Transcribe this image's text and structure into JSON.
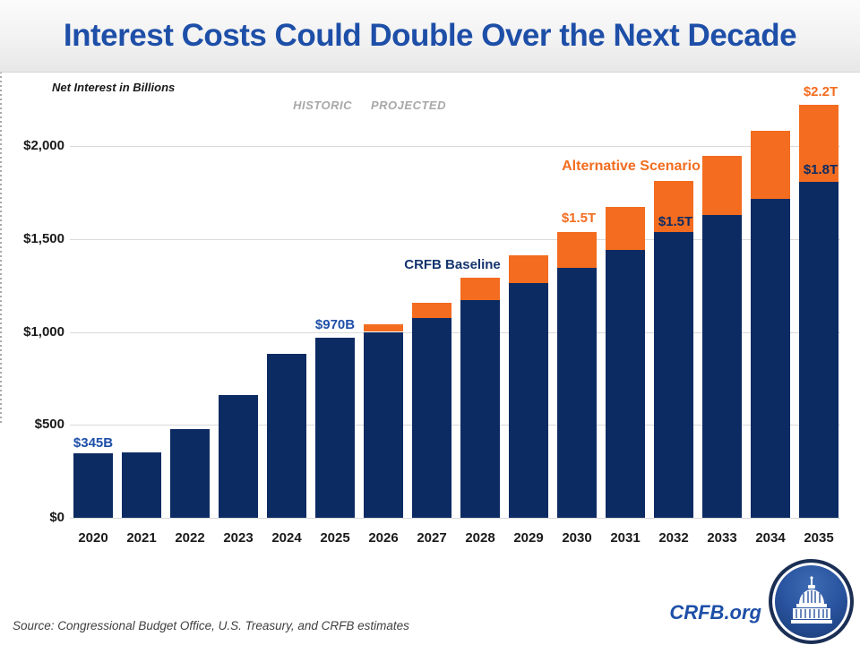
{
  "header": {
    "title": "Interest Costs Could Double Over the Next Decade"
  },
  "chart": {
    "note": "Net Interest in Billions",
    "historic_label": "HISTORIC",
    "projected_label": "PROJECTED"
  },
  "chart_data": {
    "type": "bar",
    "stacked": true,
    "title": "Interest Costs Could Double Over the Next Decade",
    "ylabel": "Net Interest in Billions",
    "units": "billions of dollars",
    "ylim": [
      0,
      2400
    ],
    "grid": true,
    "yticks": [
      {
        "label": "$0",
        "value": 0
      },
      {
        "label": "$500",
        "value": 500
      },
      {
        "label": "$1,000",
        "value": 1000
      },
      {
        "label": "$1,500",
        "value": 1500
      },
      {
        "label": "$2,000",
        "value": 2000
      }
    ],
    "categories": [
      "2020",
      "2021",
      "2022",
      "2023",
      "2024",
      "2025",
      "2026",
      "2027",
      "2028",
      "2029",
      "2030",
      "2031",
      "2032",
      "2033",
      "2034",
      "2035"
    ],
    "divider_after_category": "2025",
    "series": [
      {
        "name": "CRFB Baseline",
        "color": "#0d2b63",
        "values": [
          345,
          352,
          475,
          659,
          880,
          970,
          1000,
          1075,
          1170,
          1265,
          1345,
          1440,
          1535,
          1630,
          1715,
          1805
        ]
      },
      {
        "name": "Alternative Scenario (total)",
        "color": "#f36c1f",
        "values": [
          null,
          null,
          null,
          null,
          null,
          null,
          1040,
          1155,
          1290,
          1410,
          1535,
          1670,
          1810,
          1945,
          2080,
          2220
        ]
      }
    ]
  },
  "annotations": {
    "bar2020": {
      "text": "$345B"
    },
    "bar2025": {
      "text": "$970B"
    },
    "baseline_series": {
      "text": "CRFB Baseline"
    },
    "alternative_series": {
      "text": "Alternative Scenario"
    },
    "alt2030": {
      "text": "$1.5T"
    },
    "base2032": {
      "text": "$1.5T"
    },
    "base2035": {
      "text": "$1.8T"
    },
    "alt2035": {
      "text": "$2.2T"
    }
  },
  "footer": {
    "source": "Source: Congressional Budget Office, U.S. Treasury, and CRFB estimates",
    "site": "CRFB.org",
    "logo": "capitol-icon"
  },
  "colors": {
    "title_blue": "#1e4fa8",
    "bar_navy": "#0d2b63",
    "bar_orange": "#f36c1f",
    "gridline": "#dadada",
    "muted_gray": "#a8a8a8"
  }
}
